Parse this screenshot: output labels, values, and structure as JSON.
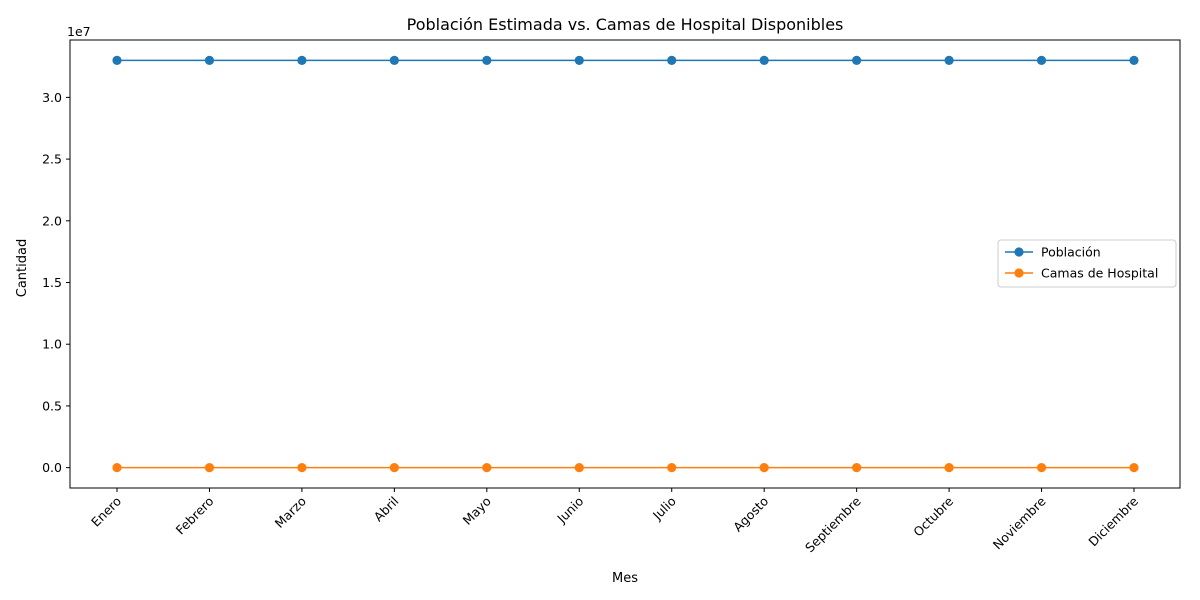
{
  "chart_data": {
    "type": "line",
    "title": "Población Estimada vs. Camas de Hospital Disponibles",
    "xlabel": "Mes",
    "ylabel": "Cantidad",
    "y_offset_label": "1e7",
    "categories": [
      "Enero",
      "Febrero",
      "Marzo",
      "Abril",
      "Mayo",
      "Junio",
      "Julio",
      "Agosto",
      "Septiembre",
      "Octubre",
      "Noviembre",
      "Diciembre"
    ],
    "series": [
      {
        "name": "Población",
        "color": "#1f77b4",
        "values": [
          33000000,
          33000000,
          33000000,
          33000000,
          33000000,
          33000000,
          33000000,
          33000000,
          33000000,
          33000000,
          33000000,
          33000000
        ]
      },
      {
        "name": "Camas de Hospital",
        "color": "#ff7f0e",
        "values": [
          0,
          0,
          0,
          0,
          0,
          0,
          0,
          0,
          0,
          0,
          0,
          0
        ]
      }
    ],
    "ylim": [
      -1650000,
      34650000
    ],
    "yticks": [
      0,
      5000000,
      10000000,
      15000000,
      20000000,
      25000000,
      30000000
    ],
    "ytick_labels": [
      "0.0",
      "0.5",
      "1.0",
      "1.5",
      "2.0",
      "2.5",
      "3.0"
    ],
    "grid": false,
    "legend_position": "center-right"
  }
}
